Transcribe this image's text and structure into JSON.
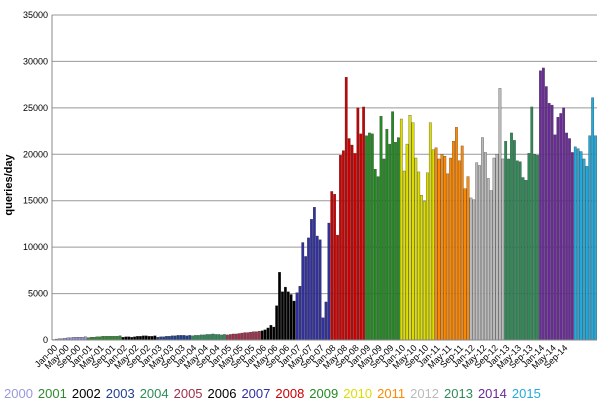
{
  "chart_data": {
    "type": "bar",
    "ylabel": "queries/day",
    "ylim": [
      0,
      35000
    ],
    "yticks": [
      0,
      5000,
      10000,
      15000,
      20000,
      25000,
      30000,
      35000
    ],
    "grid": true,
    "legend_position": "bottom",
    "x_tick_labels": [
      "Jan-00",
      "May-00",
      "Sep-00",
      "Jan-01",
      "May-01",
      "Sep-01",
      "Jan-02",
      "May-02",
      "Sep-02",
      "Jan-03",
      "May-03",
      "Sep-03",
      "Jan-04",
      "May-04",
      "Sep-04",
      "Jan-05",
      "May-05",
      "Sep-05",
      "Jan-06",
      "May-06",
      "Sep-06",
      "Jan-07",
      "May-07",
      "Sep-07",
      "Jan-08",
      "May-08",
      "Sep-08",
      "Jan-09",
      "May-09",
      "Sep-09",
      "Jan-10",
      "May-10",
      "Sep-10",
      "Jan-11",
      "May-11",
      "Sep-11",
      "Jan-12",
      "May-12",
      "Sep-12",
      "Jan-13",
      "May-13",
      "Sep-13",
      "Jan-14",
      "May-14",
      "Sep-14"
    ],
    "series": [
      {
        "name": "2000",
        "color": "#9999dd",
        "values": [
          50,
          100,
          150,
          150,
          200,
          250,
          250,
          300,
          300,
          300,
          300,
          350
        ]
      },
      {
        "name": "2001",
        "color": "#2e8b2e",
        "values": [
          250,
          300,
          300,
          350,
          350,
          400,
          400,
          400,
          400,
          400,
          400,
          450
        ]
      },
      {
        "name": "2002",
        "color": "#000000",
        "values": [
          300,
          350,
          350,
          300,
          350,
          400,
          400,
          450,
          450,
          400,
          400,
          450
        ]
      },
      {
        "name": "2003",
        "color": "#1f3f8f",
        "values": [
          300,
          350,
          350,
          400,
          400,
          450,
          450,
          500,
          500,
          500,
          450,
          500
        ]
      },
      {
        "name": "2004",
        "color": "#2e8b57",
        "values": [
          450,
          500,
          500,
          550,
          550,
          600,
          600,
          650,
          600,
          600,
          550,
          600
        ]
      },
      {
        "name": "2005",
        "color": "#a0304a",
        "values": [
          550,
          600,
          650,
          650,
          700,
          750,
          800,
          800,
          850,
          900,
          900,
          950
        ]
      },
      {
        "name": "2006",
        "color": "#000000",
        "values": [
          1000,
          1100,
          1300,
          1600,
          1400,
          3700,
          7300,
          5200,
          5700,
          5200,
          4900,
          4200
        ]
      },
      {
        "name": "2007",
        "color": "#3030a0",
        "values": [
          5100,
          5800,
          10500,
          9000,
          11000,
          13000,
          14300,
          11200,
          10800,
          2400,
          4100,
          12600
        ]
      },
      {
        "name": "2008",
        "color": "#cc0000",
        "values": [
          16000,
          15700,
          11300,
          19900,
          20400,
          28300,
          21700,
          21000,
          20100,
          25000,
          22200,
          25100
        ]
      },
      {
        "name": "2009",
        "color": "#228b22",
        "values": [
          22000,
          22300,
          22200,
          18400,
          17600,
          24100,
          19500,
          22700,
          21100,
          24600,
          21300,
          21800
        ]
      },
      {
        "name": "2010",
        "color": "#dddd00",
        "values": [
          23800,
          18200,
          21100,
          24200,
          23400,
          19600,
          18100,
          15600,
          14900,
          18000,
          23400,
          20500
        ]
      },
      {
        "name": "2011",
        "color": "#ff8800",
        "values": [
          20700,
          19500,
          20000,
          19800,
          17900,
          19600,
          21400,
          22900,
          19300,
          20900,
          16300,
          17600
        ]
      },
      {
        "name": "2012",
        "color": "#bbbbbb",
        "values": [
          15300,
          15100,
          19100,
          18800,
          21800,
          20200,
          17400,
          16100,
          19600,
          20000,
          27100,
          19500
        ]
      },
      {
        "name": "2013",
        "color": "#2e8b57",
        "values": [
          21400,
          19500,
          22300,
          21500,
          19300,
          19200,
          17500,
          17200,
          20100,
          25100,
          20000,
          19900
        ]
      },
      {
        "name": "2014",
        "color": "#6a2a9a",
        "values": [
          29000,
          29300,
          27300,
          25500,
          25300,
          22100,
          24000,
          24400,
          25000,
          22300,
          21700,
          20200
        ]
      },
      {
        "name": "2015",
        "color": "#22aadd",
        "values": [
          20800,
          20600,
          20300,
          19500,
          18700,
          22000,
          26100,
          22000
        ]
      }
    ]
  },
  "legend": [
    {
      "label": "2000",
      "color": "#9999dd"
    },
    {
      "label": "2001",
      "color": "#2e8b2e"
    },
    {
      "label": "2002",
      "color": "#000000"
    },
    {
      "label": "2003",
      "color": "#1f3f8f"
    },
    {
      "label": "2004",
      "color": "#2e8b57"
    },
    {
      "label": "2005",
      "color": "#a0304a"
    },
    {
      "label": "2006",
      "color": "#000000"
    },
    {
      "label": "2007",
      "color": "#3030a0"
    },
    {
      "label": "2008",
      "color": "#cc0000"
    },
    {
      "label": "2009",
      "color": "#228b22"
    },
    {
      "label": "2010",
      "color": "#dddd00"
    },
    {
      "label": "2011",
      "color": "#ff8800"
    },
    {
      "label": "2012",
      "color": "#bbbbbb"
    },
    {
      "label": "2013",
      "color": "#2e8b57"
    },
    {
      "label": "2014",
      "color": "#6a2a9a"
    },
    {
      "label": "2015",
      "color": "#22aadd"
    }
  ]
}
